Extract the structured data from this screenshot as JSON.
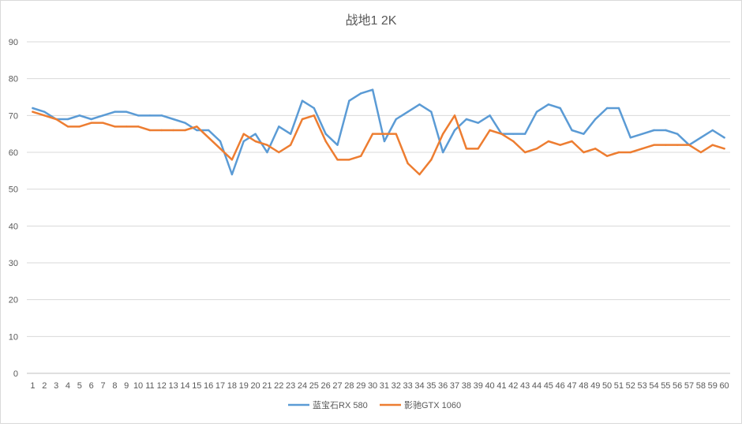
{
  "chart_data": {
    "type": "line",
    "title": "战地1 2K",
    "xlabel": "",
    "ylabel": "",
    "ylim": [
      0,
      90
    ],
    "yticks": [
      0,
      10,
      20,
      30,
      40,
      50,
      60,
      70,
      80,
      90
    ],
    "grid": true,
    "legend_position": "bottom",
    "x": [
      1,
      2,
      3,
      4,
      5,
      6,
      7,
      8,
      9,
      10,
      11,
      12,
      13,
      14,
      15,
      16,
      17,
      18,
      19,
      20,
      21,
      22,
      23,
      24,
      25,
      26,
      27,
      28,
      29,
      30,
      31,
      32,
      33,
      34,
      35,
      36,
      37,
      38,
      39,
      40,
      41,
      42,
      43,
      44,
      45,
      46,
      47,
      48,
      49,
      50,
      51,
      52,
      53,
      54,
      55,
      56,
      57,
      58,
      59,
      60
    ],
    "series": [
      {
        "name": "蓝宝石RX 580",
        "color": "#5b9bd5",
        "values": [
          72,
          71,
          69,
          69,
          70,
          69,
          70,
          71,
          71,
          70,
          70,
          70,
          69,
          68,
          66,
          66,
          63,
          54,
          63,
          65,
          60,
          67,
          65,
          74,
          72,
          65,
          62,
          74,
          76,
          77,
          63,
          69,
          71,
          73,
          71,
          60,
          66,
          69,
          68,
          70,
          65,
          65,
          65,
          71,
          73,
          72,
          66,
          65,
          69,
          72,
          72,
          64,
          65,
          66,
          66,
          65,
          62,
          64,
          66,
          64
        ]
      },
      {
        "name": "影驰GTX 1060",
        "color": "#ed7d31",
        "values": [
          71,
          70,
          69,
          67,
          67,
          68,
          68,
          67,
          67,
          67,
          66,
          66,
          66,
          66,
          67,
          64,
          61,
          58,
          65,
          63,
          62,
          60,
          62,
          69,
          70,
          63,
          58,
          58,
          59,
          65,
          65,
          65,
          57,
          54,
          58,
          65,
          70,
          61,
          61,
          66,
          65,
          63,
          60,
          61,
          63,
          62,
          63,
          60,
          61,
          59,
          60,
          60,
          61,
          62,
          62,
          62,
          62,
          60,
          62,
          61
        ]
      }
    ]
  }
}
